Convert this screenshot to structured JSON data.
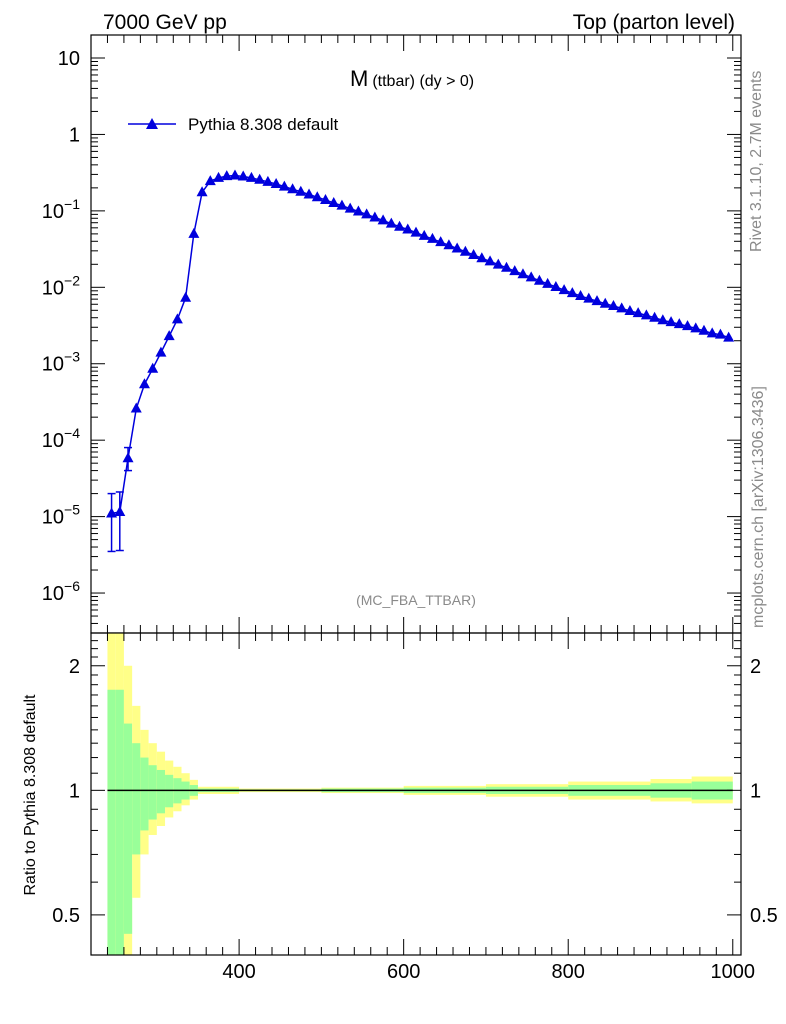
{
  "header": {
    "left": "7000 GeV pp",
    "right": "Top (parton level)"
  },
  "side_labels": {
    "rivet": "Rivet 3.1.10,  2.7M events",
    "mcplots": "mcplots.cern.ch [arXiv:1306.3436]"
  },
  "analysis_tag": "(MC_FBA_TTBAR)",
  "chart_data": [
    {
      "type": "line",
      "panel": "main",
      "title_main": "M",
      "title_sub": "(ttbar) (dy > 0)",
      "yscale": "log",
      "xlim": [
        220,
        1010
      ],
      "ylim": [
        3e-07,
        20
      ],
      "ytick_labels": [
        {
          "value": 10,
          "base": "10",
          "exp": ""
        },
        {
          "value": 1,
          "base": "1",
          "exp": ""
        },
        {
          "value": 0.1,
          "base": "10",
          "exp": "−1"
        },
        {
          "value": 0.01,
          "base": "10",
          "exp": "−2"
        },
        {
          "value": 0.001,
          "base": "10",
          "exp": "−3"
        },
        {
          "value": 0.0001,
          "base": "10",
          "exp": "−4"
        },
        {
          "value": 1e-05,
          "base": "10",
          "exp": "−5"
        },
        {
          "value": 1e-06,
          "base": "10",
          "exp": "−6"
        }
      ],
      "legend": {
        "placement": "top-left",
        "entries": [
          "Pythia 8.308 default"
        ]
      },
      "series": [
        {
          "name": "Pythia 8.308 default",
          "color": "#0000dd",
          "marker": "triangle",
          "x": [
            245,
            255,
            265,
            275,
            285,
            295,
            305,
            315,
            325,
            335,
            345,
            355,
            365,
            375,
            385,
            395,
            405,
            415,
            425,
            435,
            445,
            455,
            465,
            475,
            485,
            495,
            505,
            515,
            525,
            535,
            545,
            555,
            565,
            575,
            585,
            595,
            605,
            615,
            625,
            635,
            645,
            655,
            665,
            675,
            685,
            695,
            705,
            715,
            725,
            735,
            745,
            755,
            765,
            775,
            785,
            795,
            805,
            815,
            825,
            835,
            845,
            855,
            865,
            875,
            885,
            895,
            905,
            915,
            925,
            935,
            945,
            955,
            965,
            975,
            985,
            995
          ],
          "y": [
            1.1e-05,
            1.15e-05,
            5.8e-05,
            0.00026,
            0.00054,
            0.00086,
            0.0014,
            0.0023,
            0.0038,
            0.0073,
            0.05,
            0.175,
            0.245,
            0.27,
            0.285,
            0.29,
            0.282,
            0.27,
            0.255,
            0.24,
            0.225,
            0.208,
            0.192,
            0.178,
            0.164,
            0.151,
            0.139,
            0.127,
            0.117,
            0.107,
            0.098,
            0.09,
            0.082,
            0.075,
            0.068,
            0.062,
            0.057,
            0.052,
            0.047,
            0.043,
            0.039,
            0.0355,
            0.0322,
            0.0292,
            0.0265,
            0.024,
            0.0218,
            0.0198,
            0.018,
            0.0163,
            0.0148,
            0.0135,
            0.0122,
            0.0111,
            0.0101,
            0.0092,
            0.0084,
            0.0077,
            0.0071,
            0.0066,
            0.0061,
            0.0057,
            0.0053,
            0.0049,
            0.0046,
            0.0043,
            0.004,
            0.0037,
            0.0035,
            0.0033,
            0.0031,
            0.0029,
            0.0027,
            0.0025,
            0.0024,
            0.0022
          ],
          "error_low": [
            3.5e-06,
            3.6e-06,
            4e-05
          ],
          "error_high": [
            2e-05,
            2.1e-05,
            8e-05
          ]
        }
      ]
    },
    {
      "type": "area",
      "panel": "ratio",
      "ylabel": "Ratio to Pythia 8.308 default",
      "yscale": "log",
      "ylim": [
        0.4,
        2.4
      ],
      "xlim": [
        220,
        1010
      ],
      "xtick_labels": [
        "400",
        "600",
        "800",
        "1000"
      ],
      "xticks": [
        400,
        600,
        800,
        1000
      ],
      "ytick_labels": [
        "2",
        "1",
        "0.5"
      ],
      "yticks": [
        2,
        1,
        0.5
      ],
      "band_colors": {
        "inner": "#99ff99",
        "outer": "#ffff88"
      },
      "bin_edges": [
        240,
        250,
        260,
        270,
        280,
        290,
        300,
        310,
        320,
        330,
        340,
        350,
        400,
        500,
        600,
        700,
        800,
        900,
        950,
        1000
      ],
      "inner_low": [
        0.3,
        0.3,
        0.45,
        0.7,
        0.8,
        0.85,
        0.88,
        0.91,
        0.93,
        0.95,
        0.97,
        0.99,
        0.995,
        0.99,
        0.985,
        0.98,
        0.97,
        0.96,
        0.95
      ],
      "inner_high": [
        1.75,
        1.75,
        1.45,
        1.3,
        1.2,
        1.15,
        1.12,
        1.09,
        1.07,
        1.05,
        1.03,
        1.01,
        1.005,
        1.01,
        1.015,
        1.02,
        1.03,
        1.04,
        1.05
      ],
      "outer_low": [
        0.3,
        0.3,
        0.3,
        0.55,
        0.7,
        0.78,
        0.82,
        0.86,
        0.89,
        0.92,
        0.95,
        0.98,
        0.99,
        0.985,
        0.975,
        0.965,
        0.95,
        0.94,
        0.93
      ],
      "outer_high": [
        2.4,
        2.4,
        2.0,
        1.6,
        1.4,
        1.3,
        1.24,
        1.18,
        1.14,
        1.1,
        1.06,
        1.02,
        1.01,
        1.015,
        1.025,
        1.035,
        1.05,
        1.065,
        1.08
      ],
      "reference_line": 1
    }
  ]
}
